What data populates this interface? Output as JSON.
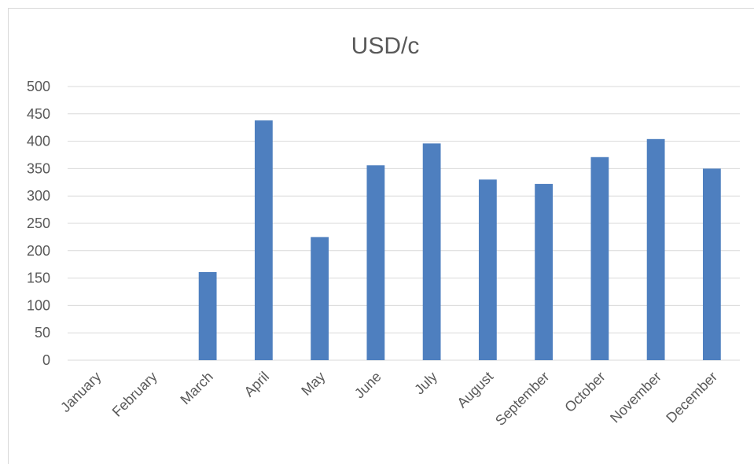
{
  "chart_data": {
    "type": "bar",
    "title": "USD/c",
    "xlabel": "",
    "ylabel": "",
    "categories": [
      "January",
      "February",
      "March",
      "April",
      "May",
      "June",
      "July",
      "August",
      "September",
      "October",
      "November",
      "December"
    ],
    "values": [
      0,
      0,
      161,
      438,
      225,
      356,
      396,
      330,
      322,
      371,
      404,
      350
    ],
    "ylim": [
      0,
      500
    ],
    "yticks": [
      0,
      50,
      100,
      150,
      200,
      250,
      300,
      350,
      400,
      450,
      500
    ],
    "ytick_labels": [
      "0",
      "50",
      "100",
      "150",
      "200",
      "250",
      "300",
      "350",
      "400",
      "450",
      "500"
    ],
    "grid": true,
    "legend": "none",
    "bar_color": "#4e7fbf",
    "gridline_color": "#d9d9d9",
    "text_color": "#595959"
  }
}
